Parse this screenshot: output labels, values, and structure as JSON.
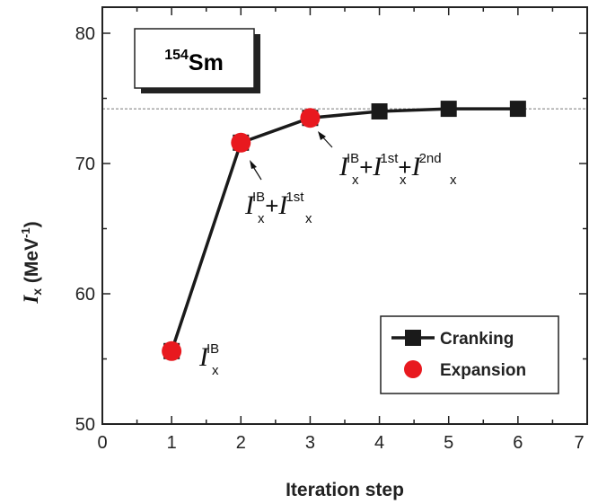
{
  "chart_data": {
    "type": "line",
    "x_label": "Iteration step",
    "y_label_symbol": "I",
    "y_label_sub": "x",
    "y_label_text": " (MeV",
    "y_label_sup": "-1",
    "y_label_close": ")",
    "xlim": [
      0,
      7
    ],
    "ylim": [
      50,
      82
    ],
    "x_ticks": [
      "0",
      "1",
      "2",
      "3",
      "4",
      "5",
      "6",
      "7"
    ],
    "y_ticks": [
      "50",
      "60",
      "70",
      "80"
    ],
    "y_tick_values": [
      50,
      60,
      70,
      80
    ],
    "reference_line_y": 74.2,
    "nucleus_mass": "154",
    "nucleus_symbol": "Sm",
    "series": [
      {
        "name": "Cranking",
        "color": "#1a1a1a",
        "marker": "square",
        "x": [
          1,
          2,
          3,
          4,
          5,
          6
        ],
        "y": [
          55.6,
          71.6,
          73.5,
          74.0,
          74.2,
          74.2
        ]
      },
      {
        "name": "Expansion",
        "color": "#e8191f",
        "marker": "circle",
        "x": [
          1,
          2,
          3
        ],
        "y": [
          55.6,
          71.6,
          73.5
        ]
      }
    ],
    "annotations": {
      "ib": {
        "sym": "I",
        "sub": "x",
        "sup": "IB"
      },
      "first": {
        "sym1": "I",
        "sub1": "x",
        "sup1": "IB",
        "plus": "+",
        "sym2": "I",
        "sub2": "x",
        "sup2": "1st"
      },
      "second": {
        "sym1": "I",
        "sub1": "x",
        "sup1": "IB",
        "plus1": "+",
        "sym2": "I",
        "sub2": "x",
        "sup2": "1st",
        "plus2": "+",
        "sym3": "I",
        "sub3": "x",
        "sup3": "2nd"
      }
    }
  }
}
